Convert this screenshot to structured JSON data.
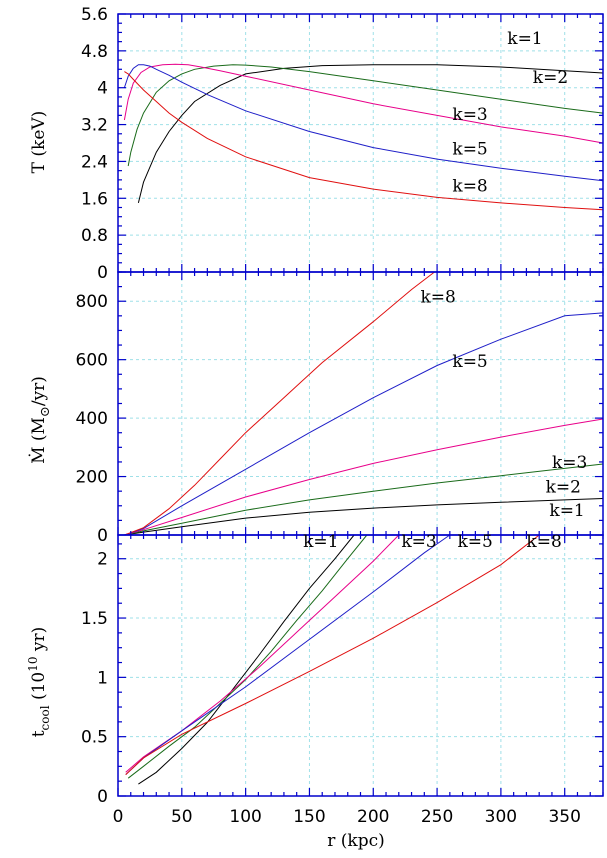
{
  "xlabel": "r (kpc)",
  "colors": {
    "k1": "#000000",
    "k2": "#1a6b1a",
    "k3": "#e8008a",
    "k5": "#1f1fc8",
    "k8": "#e01010",
    "grid": "#9fe0e8",
    "axis": "#0000cc"
  },
  "chart_data": [
    {
      "type": "line",
      "ylabel": "T (keV)",
      "xlim": [
        0,
        380
      ],
      "ylim": [
        0,
        5.6
      ],
      "xticks": [
        0,
        50,
        100,
        150,
        200,
        250,
        300,
        350
      ],
      "yticks": [
        "0",
        "0.8",
        "1.6",
        "2.4",
        "3.2",
        "4",
        "4.8",
        "5.6"
      ],
      "grid": true,
      "series": [
        {
          "name": "k=1",
          "color": "#000000",
          "x": [
            16,
            20,
            30,
            40,
            50,
            60,
            80,
            100,
            130,
            160,
            200,
            250,
            300,
            350,
            380
          ],
          "y": [
            1.5,
            1.95,
            2.6,
            3.05,
            3.4,
            3.7,
            4.05,
            4.3,
            4.42,
            4.48,
            4.5,
            4.5,
            4.45,
            4.37,
            4.32
          ]
        },
        {
          "name": "k=2",
          "color": "#1a6b1a",
          "x": [
            8,
            10,
            15,
            20,
            30,
            40,
            50,
            60,
            75,
            90,
            100,
            120,
            150,
            200,
            250,
            300,
            350,
            380
          ],
          "y": [
            2.3,
            2.6,
            3.1,
            3.45,
            3.9,
            4.15,
            4.3,
            4.4,
            4.47,
            4.5,
            4.49,
            4.45,
            4.35,
            4.15,
            3.95,
            3.75,
            3.55,
            3.45
          ]
        },
        {
          "name": "k=3",
          "color": "#e8008a",
          "x": [
            5,
            8,
            12,
            18,
            25,
            35,
            45,
            55,
            65,
            80,
            100,
            150,
            200,
            250,
            300,
            350,
            380
          ],
          "y": [
            3.3,
            3.75,
            4.1,
            4.33,
            4.45,
            4.5,
            4.51,
            4.5,
            4.45,
            4.37,
            4.25,
            3.95,
            3.65,
            3.4,
            3.15,
            2.95,
            2.8
          ]
        },
        {
          "name": "k=5",
          "color": "#1f1fc8",
          "x": [
            5,
            8,
            12,
            16,
            20,
            25,
            30,
            40,
            50,
            70,
            100,
            150,
            200,
            250,
            300,
            350,
            380
          ],
          "y": [
            4.0,
            4.25,
            4.42,
            4.5,
            4.5,
            4.47,
            4.4,
            4.27,
            4.12,
            3.85,
            3.5,
            3.05,
            2.7,
            2.45,
            2.25,
            2.08,
            1.98
          ]
        },
        {
          "name": "k=8",
          "color": "#e01010",
          "x": [
            5,
            8,
            12,
            20,
            30,
            40,
            50,
            70,
            100,
            150,
            200,
            250,
            300,
            350,
            380
          ],
          "y": [
            4.35,
            4.3,
            4.18,
            3.95,
            3.7,
            3.45,
            3.25,
            2.9,
            2.5,
            2.05,
            1.8,
            1.62,
            1.5,
            1.4,
            1.35
          ]
        }
      ],
      "annotations": [
        {
          "text": "k=1",
          "x": 305,
          "y": 4.95
        },
        {
          "text": "k=2",
          "x": 325,
          "y": 4.1
        },
        {
          "text": "k=3",
          "x": 262,
          "y": 3.3
        },
        {
          "text": "k=5",
          "x": 262,
          "y": 2.55
        },
        {
          "text": "k=8",
          "x": 262,
          "y": 1.75
        }
      ]
    },
    {
      "type": "line",
      "ylabel": "Ṁ (M⊙/yr)",
      "xlim": [
        0,
        380
      ],
      "ylim": [
        0,
        900
      ],
      "xticks": [
        0,
        50,
        100,
        150,
        200,
        250,
        300,
        350
      ],
      "yticks": [
        "0",
        "200",
        "400",
        "600",
        "800"
      ],
      "grid": true,
      "series": [
        {
          "name": "k=1",
          "color": "#000000",
          "x": [
            5,
            20,
            50,
            100,
            150,
            200,
            250,
            300,
            350,
            380
          ],
          "y": [
            0,
            10,
            28,
            58,
            78,
            92,
            103,
            112,
            120,
            125
          ]
        },
        {
          "name": "k=2",
          "color": "#1a6b1a",
          "x": [
            5,
            20,
            50,
            100,
            150,
            200,
            250,
            300,
            350,
            380
          ],
          "y": [
            0,
            14,
            40,
            85,
            120,
            150,
            178,
            203,
            228,
            243
          ]
        },
        {
          "name": "k=3",
          "color": "#e8008a",
          "x": [
            5,
            20,
            50,
            100,
            150,
            200,
            250,
            300,
            350,
            380
          ],
          "y": [
            0,
            18,
            60,
            130,
            190,
            245,
            292,
            335,
            375,
            397
          ]
        },
        {
          "name": "k=5",
          "color": "#1f1fc8",
          "x": [
            5,
            20,
            50,
            100,
            150,
            200,
            250,
            300,
            350,
            380
          ],
          "y": [
            0,
            22,
            100,
            225,
            350,
            470,
            580,
            670,
            750,
            760
          ]
        },
        {
          "name": "k=8",
          "color": "#e01010",
          "x": [
            5,
            20,
            40,
            60,
            80,
            100,
            130,
            160,
            200,
            230,
            248
          ],
          "y": [
            0,
            25,
            90,
            170,
            260,
            350,
            470,
            590,
            730,
            840,
            900
          ]
        }
      ],
      "annotations": [
        {
          "text": "k=8",
          "x": 237,
          "y": 795
        },
        {
          "text": "k=5",
          "x": 262,
          "y": 575
        },
        {
          "text": "k=3",
          "x": 340,
          "y": 230
        },
        {
          "text": "k=2",
          "x": 335,
          "y": 145
        },
        {
          "text": "k=1",
          "x": 338,
          "y": 65
        }
      ]
    },
    {
      "type": "line",
      "ylabel": "t_cool (10^10 yr)",
      "xlim": [
        0,
        380
      ],
      "ylim": [
        0,
        2.2
      ],
      "xticks": [
        0,
        50,
        100,
        150,
        200,
        250,
        300,
        350
      ],
      "yticks": [
        "0",
        "0.5",
        "1",
        "1.5",
        "2"
      ],
      "grid": true,
      "series": [
        {
          "name": "k=1",
          "color": "#000000",
          "x": [
            16,
            30,
            50,
            70,
            90,
            110,
            130,
            150,
            170,
            185
          ],
          "y": [
            0.1,
            0.2,
            0.4,
            0.62,
            0.9,
            1.18,
            1.47,
            1.75,
            2.0,
            2.2
          ]
        },
        {
          "name": "k=2",
          "color": "#1a6b1a",
          "x": [
            8,
            20,
            40,
            60,
            80,
            100,
            120,
            140,
            160,
            180,
            195
          ],
          "y": [
            0.15,
            0.25,
            0.42,
            0.58,
            0.78,
            0.98,
            1.22,
            1.48,
            1.73,
            2.0,
            2.2
          ]
        },
        {
          "name": "k=3",
          "color": "#e8008a",
          "x": [
            6,
            20,
            50,
            80,
            110,
            140,
            170,
            200,
            220
          ],
          "y": [
            0.2,
            0.33,
            0.55,
            0.8,
            1.08,
            1.38,
            1.68,
            1.98,
            2.2
          ]
        },
        {
          "name": "k=5",
          "color": "#1f1fc8",
          "x": [
            6,
            20,
            50,
            100,
            150,
            200,
            240,
            260
          ],
          "y": [
            0.18,
            0.32,
            0.55,
            0.92,
            1.32,
            1.72,
            2.05,
            2.2
          ]
        },
        {
          "name": "k=8",
          "color": "#e01010",
          "x": [
            6,
            20,
            50,
            100,
            150,
            200,
            250,
            300,
            330
          ],
          "y": [
            0.18,
            0.32,
            0.52,
            0.78,
            1.05,
            1.33,
            1.63,
            1.95,
            2.2
          ]
        }
      ],
      "annotations": [
        {
          "text": "k=1",
          "x": 145,
          "y": 2.1
        },
        {
          "text": "k=3",
          "x": 222,
          "y": 2.1
        },
        {
          "text": "k=5",
          "x": 266,
          "y": 2.1
        },
        {
          "text": "k=8",
          "x": 320,
          "y": 2.1
        }
      ]
    }
  ]
}
